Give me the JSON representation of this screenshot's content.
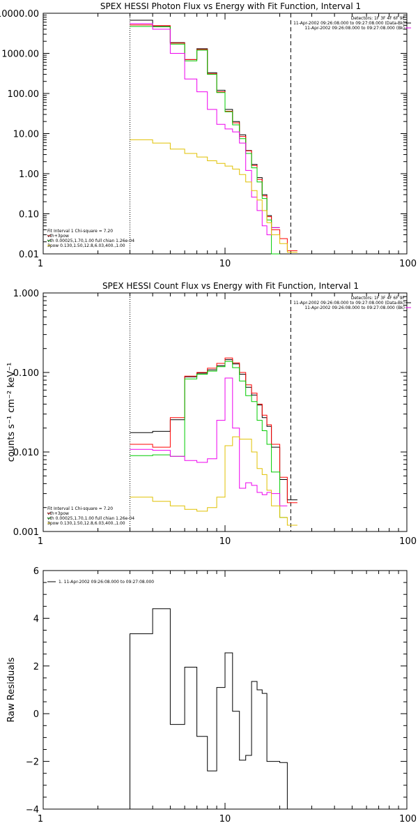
{
  "charts": [
    {
      "type": "step-line",
      "title": "SPEX HESSI Photon Flux vs Energy with Fit Function, Interval 1",
      "ylabel": "",
      "xscale": "log",
      "yscale": "log",
      "xlim": [
        1,
        100
      ],
      "ylim": [
        0.01,
        10000
      ],
      "xticks": [
        {
          "v": 1,
          "label": "1"
        },
        {
          "v": 10,
          "label": "10"
        },
        {
          "v": 100,
          "label": "100"
        }
      ],
      "yticks": [
        {
          "v": 10000,
          "label": "10000.00"
        },
        {
          "v": 1000,
          "label": "1000.00"
        },
        {
          "v": 100,
          "label": "100.00"
        },
        {
          "v": 10,
          "label": "10.00"
        },
        {
          "v": 1,
          "label": "1.00"
        },
        {
          "v": 0.1,
          "label": "0.10"
        },
        {
          "v": 0.01,
          "label": "0.01"
        }
      ],
      "info_lines": [
        "Detectors: 1F 3F 4F 6F 9F",
        "11-Apr-2002 09:26:08.000 to 09:27:08.000 (Data-Bk)",
        "11-Apr-2002 09:26:08.000 to 09:27:08.000 (Bk)"
      ],
      "legend_lines": [
        {
          "text": "Fit Interval 1    Chi-square = 7.20",
          "color": "#000000"
        },
        {
          "text": "vth+3pow",
          "color": "#ff0000"
        },
        {
          "text": "vth 0.00025,1.70,1.00   full chian 1.26e-04",
          "color": "#00cc00"
        },
        {
          "text": "3pow 0.130,1.50,12.8,6.03,400.,1.00",
          "color": "#e0c000"
        }
      ],
      "vlines": [
        {
          "x": 3.0,
          "style": "dotted"
        },
        {
          "x": 23.0,
          "style": "dashed"
        }
      ],
      "bin_edges": [
        3.0,
        4.0,
        5.0,
        6.0,
        7.0,
        8.0,
        9.0,
        10.0,
        11.0,
        12.0,
        13.0,
        14.0,
        15.0,
        16.0,
        17.0,
        18.0,
        20.0,
        22.0,
        25.0,
        28.0
      ],
      "series": [
        {
          "name": "Data-Bk",
          "color": "#000000",
          "values": [
            6700,
            4700,
            1850,
            700,
            1300,
            330,
            120,
            40,
            20,
            9.3,
            3.8,
            1.7,
            0.8,
            0.3,
            0.09,
            0.045,
            null,
            null,
            null
          ]
        },
        {
          "name": "vth+3pow",
          "color": "#ff0000",
          "values": [
            5100,
            4900,
            1800,
            700,
            1250,
            310,
            110,
            36,
            18.5,
            8.5,
            3.7,
            1.6,
            0.72,
            0.28,
            0.085,
            0.04,
            0.024,
            0.012,
            null
          ]
        },
        {
          "name": "vth",
          "color": "#00cc00",
          "values": [
            4700,
            4600,
            1700,
            650,
            1200,
            300,
            105,
            35,
            16.5,
            7.5,
            3.2,
            1.4,
            0.62,
            0.24,
            0.07,
            0.01,
            null,
            null,
            null
          ]
        },
        {
          "name": "Bk",
          "color": "#ee00ee",
          "values": [
            5500,
            4000,
            1000,
            230,
            110,
            40,
            17,
            13,
            11,
            5.8,
            1.2,
            0.26,
            0.12,
            0.05,
            0.03,
            0.045,
            null,
            null,
            null
          ]
        },
        {
          "name": "3pow",
          "color": "#e0c000",
          "values": [
            7.0,
            5.8,
            4.1,
            3.2,
            2.6,
            2.1,
            1.8,
            1.55,
            1.3,
            0.95,
            0.62,
            0.38,
            0.22,
            0.12,
            0.06,
            0.03,
            0.018,
            0.011,
            null
          ]
        }
      ]
    },
    {
      "type": "step-line",
      "title": "SPEX HESSI Count Flux vs Energy with Fit Function, Interval 1",
      "ylabel": "counts s⁻¹ cm⁻² keV⁻¹",
      "xscale": "log",
      "yscale": "log",
      "xlim": [
        1,
        100
      ],
      "ylim": [
        0.001,
        1
      ],
      "xticks": [
        {
          "v": 1,
          "label": "1"
        },
        {
          "v": 10,
          "label": "10"
        },
        {
          "v": 100,
          "label": "100"
        }
      ],
      "yticks": [
        {
          "v": 1,
          "label": "1.000"
        },
        {
          "v": 0.1,
          "label": "0.100"
        },
        {
          "v": 0.01,
          "label": "0.010"
        },
        {
          "v": 0.001,
          "label": "0.001"
        }
      ],
      "info_lines": [
        "Detectors: 1F 3F 4F 6F 9F",
        "11-Apr-2002 09:26:08.000 to 09:27:08.000 (Data-Bk)",
        "11-Apr-2002 09:26:08.000 to 09:27:08.000 (Bk)"
      ],
      "legend_lines": [
        {
          "text": "Fit Interval 1    Chi-square = 7.20",
          "color": "#000000"
        },
        {
          "text": "vth+3pow",
          "color": "#ff0000"
        },
        {
          "text": "vth 0.00025,1.70,1.00   full chian 1.26e-04",
          "color": "#00cc00"
        },
        {
          "text": "3pow 0.130,1.50,12.8,6.03,400.,1.00",
          "color": "#e0c000"
        }
      ],
      "vlines": [
        {
          "x": 3.0,
          "style": "dotted"
        },
        {
          "x": 23.0,
          "style": "dashed"
        }
      ],
      "bin_edges": [
        3.0,
        4.0,
        5.0,
        6.0,
        7.0,
        8.0,
        9.0,
        10.0,
        11.0,
        12.0,
        13.0,
        14.0,
        15.0,
        16.0,
        17.0,
        18.0,
        20.0,
        22.0,
        25.0,
        28.0
      ],
      "series": [
        {
          "name": "Data-Bk",
          "color": "#000000",
          "values": [
            0.0175,
            0.0182,
            0.0255,
            0.088,
            0.098,
            0.108,
            0.122,
            0.145,
            0.128,
            0.095,
            0.065,
            0.052,
            0.039,
            0.027,
            0.021,
            0.0115,
            0.0045,
            0.0025,
            null
          ]
        },
        {
          "name": "vth+3pow",
          "color": "#ff0000",
          "values": [
            0.0125,
            0.0115,
            0.027,
            0.09,
            0.1,
            0.113,
            0.13,
            0.152,
            0.132,
            0.1,
            0.07,
            0.055,
            0.04,
            0.029,
            0.022,
            0.0125,
            0.0048,
            0.0023,
            null
          ]
        },
        {
          "name": "vth",
          "color": "#00cc00",
          "values": [
            0.009,
            0.0092,
            0.0088,
            0.083,
            0.095,
            0.104,
            0.118,
            0.138,
            0.115,
            0.078,
            0.051,
            0.043,
            0.025,
            0.0185,
            0.0125,
            0.0056,
            0.0015,
            null,
            null
          ]
        },
        {
          "name": "Bk",
          "color": "#ee00ee",
          "values": [
            0.0108,
            0.0105,
            0.0088,
            0.0078,
            0.0074,
            0.0082,
            0.025,
            0.085,
            0.02,
            0.0035,
            0.0041,
            0.0038,
            0.0031,
            0.0029,
            0.0031,
            0.003,
            0.0021,
            null,
            null
          ]
        },
        {
          "name": "3pow",
          "color": "#e0c000",
          "values": [
            0.0027,
            0.0024,
            0.0021,
            0.0019,
            0.0018,
            0.002,
            0.0027,
            0.012,
            0.0155,
            0.0145,
            0.0145,
            0.01,
            0.0062,
            0.0052,
            0.0033,
            0.0021,
            0.0015,
            0.0012,
            null
          ]
        }
      ]
    },
    {
      "type": "step-line",
      "title": "",
      "ylabel": "Raw Residuals",
      "xscale": "log",
      "yscale": "linear",
      "xlim": [
        1,
        100
      ],
      "ylim": [
        -4,
        6
      ],
      "xticks": [
        {
          "v": 1,
          "label": "1"
        },
        {
          "v": 10,
          "label": "10"
        },
        {
          "v": 100,
          "label": "100"
        }
      ],
      "yticks": [
        {
          "v": 6,
          "label": "6"
        },
        {
          "v": 4,
          "label": "4"
        },
        {
          "v": 2,
          "label": "2"
        },
        {
          "v": 0,
          "label": "0"
        },
        {
          "v": -2,
          "label": "−2"
        },
        {
          "v": -4,
          "label": "−4"
        }
      ],
      "info_lines": [],
      "legend_lines": [
        {
          "text": "1. 11-Apr-2002 09:26:08.000 to 09:27:08.000",
          "color": "#000000",
          "swatch": true
        }
      ],
      "vlines": [],
      "drop_edges": true,
      "bin_edges": [
        3.0,
        4.0,
        5.0,
        6.0,
        7.0,
        8.0,
        9.0,
        10.0,
        11.0,
        12.0,
        13.0,
        14.0,
        15.0,
        16.0,
        17.0,
        18.0,
        20.0,
        22.0
      ],
      "series": [
        {
          "name": "Residuals",
          "color": "#000000",
          "values": [
            3.35,
            4.4,
            -0.45,
            1.95,
            -0.95,
            -2.4,
            1.1,
            2.55,
            0.1,
            -1.95,
            -1.75,
            1.35,
            1.0,
            0.85,
            -2.0,
            -2.0,
            -2.05
          ]
        }
      ]
    }
  ]
}
